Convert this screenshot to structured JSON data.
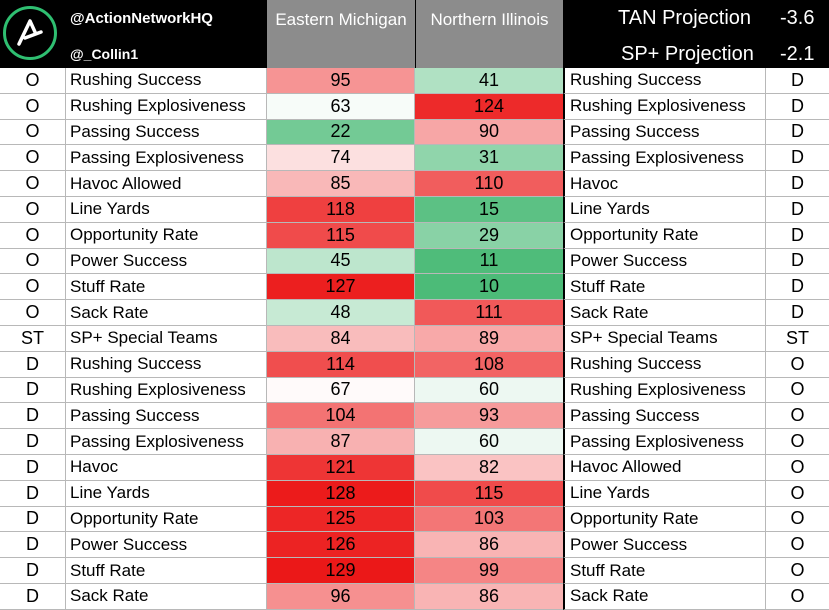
{
  "header": {
    "handle_main": "@ActionNetworkHQ",
    "handle_sub": "@_Collin1",
    "team1": "Eastern Michigan",
    "team2": "Northern Illinois",
    "tan_label": "TAN Projection",
    "tan_value": "-3.6",
    "sp_label": "SP+ Projection",
    "sp_value": "-2.1",
    "logo_icon": "action-network-logo-icon",
    "logo_ring_color": "#2fbf71"
  },
  "rows": [
    {
      "side": "O",
      "stat": "Rushing Success",
      "emu": "95",
      "niu": "41",
      "stat2": "Rushing Success",
      "side2": "D"
    },
    {
      "side": "O",
      "stat": "Rushing Explosiveness",
      "emu": "63",
      "niu": "124",
      "stat2": "Rushing Explosiveness",
      "side2": "D"
    },
    {
      "side": "O",
      "stat": "Passing Success",
      "emu": "22",
      "niu": "90",
      "stat2": "Passing Success",
      "side2": "D"
    },
    {
      "side": "O",
      "stat": "Passing Explosiveness",
      "emu": "74",
      "niu": "31",
      "stat2": "Passing Explosiveness",
      "side2": "D"
    },
    {
      "side": "O",
      "stat": "Havoc Allowed",
      "emu": "85",
      "niu": "110",
      "stat2": "Havoc",
      "side2": "D"
    },
    {
      "side": "O",
      "stat": "Line Yards",
      "emu": "118",
      "niu": "15",
      "stat2": "Line Yards",
      "side2": "D"
    },
    {
      "side": "O",
      "stat": "Opportunity Rate",
      "emu": "115",
      "niu": "29",
      "stat2": "Opportunity Rate",
      "side2": "D"
    },
    {
      "side": "O",
      "stat": "Power Success",
      "emu": "45",
      "niu": "11",
      "stat2": "Power Success",
      "side2": "D"
    },
    {
      "side": "O",
      "stat": "Stuff Rate",
      "emu": "127",
      "niu": "10",
      "stat2": "Stuff Rate",
      "side2": "D"
    },
    {
      "side": "O",
      "stat": "Sack Rate",
      "emu": "48",
      "niu": "111",
      "stat2": "Sack Rate",
      "side2": "D"
    },
    {
      "side": "ST",
      "stat": "SP+ Special Teams",
      "emu": "84",
      "niu": "89",
      "stat2": "SP+ Special Teams",
      "side2": "ST"
    },
    {
      "side": "D",
      "stat": "Rushing Success",
      "emu": "114",
      "niu": "108",
      "stat2": "Rushing Success",
      "side2": "O"
    },
    {
      "side": "D",
      "stat": "Rushing Explosiveness",
      "emu": "67",
      "niu": "60",
      "stat2": "Rushing Explosiveness",
      "side2": "O"
    },
    {
      "side": "D",
      "stat": "Passing Success",
      "emu": "104",
      "niu": "93",
      "stat2": "Passing Success",
      "side2": "O"
    },
    {
      "side": "D",
      "stat": "Passing Explosiveness",
      "emu": "87",
      "niu": "60",
      "stat2": "Passing Explosiveness",
      "side2": "O"
    },
    {
      "side": "D",
      "stat": "Havoc",
      "emu": "121",
      "niu": "82",
      "stat2": "Havoc Allowed",
      "side2": "O"
    },
    {
      "side": "D",
      "stat": "Line Yards",
      "emu": "128",
      "niu": "115",
      "stat2": "Line Yards",
      "side2": "O"
    },
    {
      "side": "D",
      "stat": "Opportunity Rate",
      "emu": "125",
      "niu": "103",
      "stat2": "Opportunity Rate",
      "side2": "O"
    },
    {
      "side": "D",
      "stat": "Power Success",
      "emu": "126",
      "niu": "86",
      "stat2": "Power Success",
      "side2": "O"
    },
    {
      "side": "D",
      "stat": "Stuff Rate",
      "emu": "129",
      "niu": "99",
      "stat2": "Stuff Rate",
      "side2": "O"
    },
    {
      "side": "D",
      "stat": "Sack Rate",
      "emu": "96",
      "niu": "86",
      "stat2": "Sack Rate",
      "side2": "O"
    }
  ]
}
